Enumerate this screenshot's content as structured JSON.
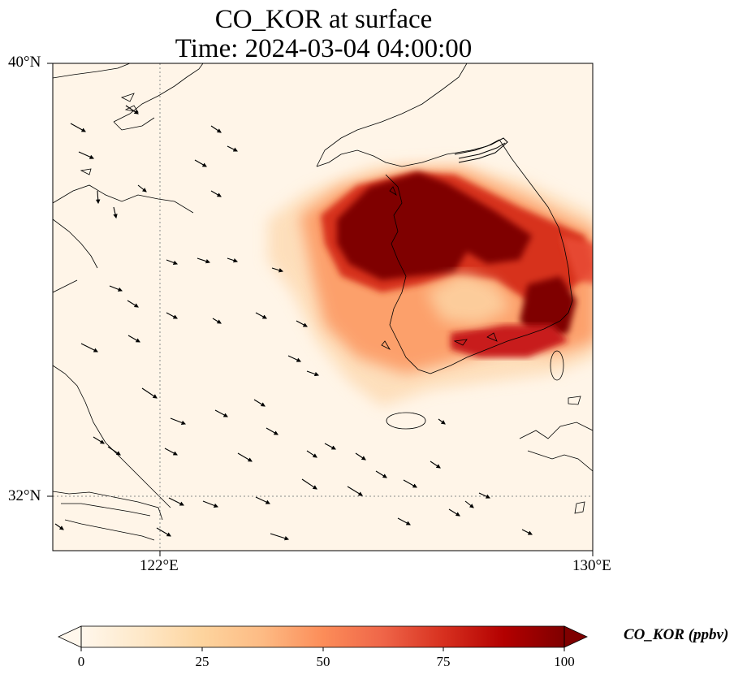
{
  "title": {
    "line1": "CO_KOR at surface",
    "line2": "Time: 2024-03-04 04:00:00"
  },
  "axes": {
    "lat_ticks": [
      "40°N",
      "32°N"
    ],
    "lon_ticks": [
      "122°E",
      "130°E"
    ]
  },
  "colorbar": {
    "label": "CO_KOR (ppbv)",
    "ticks": [
      "0",
      "25",
      "50",
      "75",
      "100"
    ],
    "colormap": [
      "#fff7ec",
      "#fee8c8",
      "#fdd49e",
      "#fdbb84",
      "#fc8d59",
      "#ef6548",
      "#d7301f",
      "#b30000",
      "#7f0000"
    ]
  },
  "map_colors": {
    "background": "#fff5e8",
    "coast": "#000000",
    "grid": "#8a8a8a"
  }
}
